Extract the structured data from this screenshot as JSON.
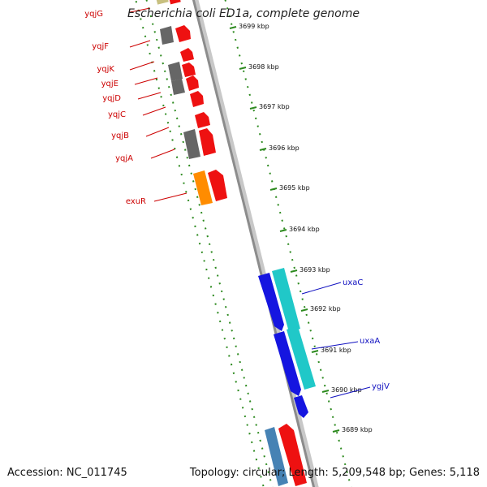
{
  "title": "Escherichia coli ED1a, complete genome",
  "footer": {
    "accession": "Accession: NC_011745",
    "summary": "Topology: circular; Length: 5,209,548 bp; Genes: 5,118"
  },
  "colors": {
    "backbone": "#8c8c8c",
    "tick": "#2d8a1f",
    "label_red": "#cc0000",
    "label_blue": "#1010c0",
    "gene_red": "#ee1111",
    "gene_gray": "#666666",
    "gene_orange": "#ff8c00",
    "gene_blue": "#1515e0",
    "gene_cyan": "#20c8c8",
    "gene_steel": "#4682b4",
    "gene_olive": "#c8c080"
  },
  "ticks": [
    {
      "label": "3699 kbp"
    },
    {
      "label": "3698 kbp"
    },
    {
      "label": "3697 kbp"
    },
    {
      "label": "3696 kbp"
    },
    {
      "label": "3695 kbp"
    },
    {
      "label": "3694 kbp"
    },
    {
      "label": "3693 kbp"
    },
    {
      "label": "3692 kbp"
    },
    {
      "label": "3691 kbp"
    },
    {
      "label": "3690 kbp"
    },
    {
      "label": "3689 kbp"
    }
  ],
  "gene_labels_left": [
    "yqjG",
    "yqjF",
    "yqjK",
    "yqjE",
    "yqjD",
    "yqjC",
    "yqjB",
    "yqjA",
    "exuR"
  ],
  "gene_labels_right": [
    "uxaC",
    "uxaA",
    "ygjV"
  ]
}
